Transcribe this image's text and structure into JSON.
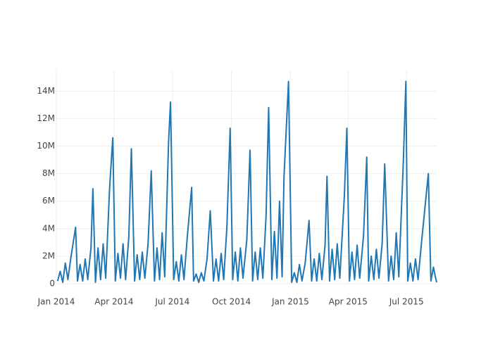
{
  "chart_data": {
    "type": "line",
    "color": "#1f77b4",
    "grid": true,
    "xlim": [
      "2014-01-01",
      "2015-08-17"
    ],
    "xticks": [
      {
        "value": "2014-01-01",
        "label": "Jan 2014"
      },
      {
        "value": "2014-04-01",
        "label": "Apr 2014"
      },
      {
        "value": "2014-07-01",
        "label": "Jul 2014"
      },
      {
        "value": "2014-10-01",
        "label": "Oct 2014"
      },
      {
        "value": "2015-01-01",
        "label": "Jan 2015"
      },
      {
        "value": "2015-04-01",
        "label": "Apr 2015"
      },
      {
        "value": "2015-07-01",
        "label": "Jul 2015"
      }
    ],
    "ylim": [
      0,
      15500000
    ],
    "yticks": [
      0,
      {
        "value": 2000000,
        "label": "2M"
      },
      {
        "value": 4000000,
        "label": "4M"
      },
      {
        "value": 6000000,
        "label": "6M"
      },
      {
        "value": 8000000,
        "label": "8M"
      },
      {
        "value": 10000000,
        "label": "10M"
      },
      {
        "value": 12000000,
        "label": "12M"
      },
      {
        "value": 14000000,
        "label": "14M"
      }
    ],
    "x": [
      "2014-01-03",
      "2014-01-07",
      "2014-01-11",
      "2014-01-15",
      "2014-01-19",
      "2014-01-24",
      "2014-01-31",
      "2014-02-03",
      "2014-02-07",
      "2014-02-11",
      "2014-02-15",
      "2014-02-19",
      "2014-02-24",
      "2014-02-27",
      "2014-03-03",
      "2014-03-07",
      "2014-03-11",
      "2014-03-15",
      "2014-03-19",
      "2014-03-25",
      "2014-03-30",
      "2014-04-03",
      "2014-04-07",
      "2014-04-11",
      "2014-04-15",
      "2014-04-19",
      "2014-04-24",
      "2014-04-28",
      "2014-05-03",
      "2014-05-07",
      "2014-05-11",
      "2014-05-15",
      "2014-05-19",
      "2014-05-24",
      "2014-05-29",
      "2014-06-03",
      "2014-06-07",
      "2014-06-11",
      "2014-06-15",
      "2014-06-19",
      "2014-06-25",
      "2014-06-28",
      "2014-07-03",
      "2014-07-07",
      "2014-07-11",
      "2014-07-15",
      "2014-07-19",
      "2014-07-24",
      "2014-07-31",
      "2014-08-03",
      "2014-08-07",
      "2014-08-11",
      "2014-08-15",
      "2014-08-19",
      "2014-08-24",
      "2014-08-29",
      "2014-09-03",
      "2014-09-07",
      "2014-09-11",
      "2014-09-15",
      "2014-09-19",
      "2014-09-24",
      "2014-09-29",
      "2014-10-03",
      "2014-10-07",
      "2014-10-11",
      "2014-10-15",
      "2014-10-19",
      "2014-10-25",
      "2014-10-30",
      "2014-11-03",
      "2014-11-07",
      "2014-11-11",
      "2014-11-15",
      "2014-11-19",
      "2014-11-24",
      "2014-11-28",
      "2014-12-03",
      "2014-12-07",
      "2014-12-11",
      "2014-12-15",
      "2014-12-19",
      "2014-12-22",
      "2014-12-29",
      "2015-01-03",
      "2015-01-07",
      "2015-01-11",
      "2015-01-15",
      "2015-01-19",
      "2015-01-24",
      "2015-01-30",
      "2015-02-03",
      "2015-02-07",
      "2015-02-11",
      "2015-02-15",
      "2015-02-19",
      "2015-02-24",
      "2015-02-27",
      "2015-03-03",
      "2015-03-07",
      "2015-03-11",
      "2015-03-15",
      "2015-03-19",
      "2015-03-26",
      "2015-03-30",
      "2015-04-03",
      "2015-04-07",
      "2015-04-11",
      "2015-04-15",
      "2015-04-19",
      "2015-04-25",
      "2015-04-30",
      "2015-05-03",
      "2015-05-07",
      "2015-05-11",
      "2015-05-15",
      "2015-05-19",
      "2015-05-24",
      "2015-05-28",
      "2015-06-03",
      "2015-06-07",
      "2015-06-11",
      "2015-06-15",
      "2015-06-19",
      "2015-06-26",
      "2015-06-30",
      "2015-07-03",
      "2015-07-07",
      "2015-07-11",
      "2015-07-15",
      "2015-07-19",
      "2015-07-24",
      "2015-08-04",
      "2015-08-08",
      "2015-08-12",
      "2015-08-15",
      "2015-08-17"
    ],
    "values": [
      200000,
      900000,
      100000,
      1500000,
      300000,
      2000000,
      4100000,
      200000,
      1400000,
      200000,
      1800000,
      300000,
      2600000,
      6900000,
      100000,
      2600000,
      300000,
      2900000,
      400000,
      6900000,
      10600000,
      200000,
      2200000,
      400000,
      2900000,
      300000,
      3400000,
      9800000,
      200000,
      2100000,
      300000,
      2300000,
      400000,
      2900000,
      8200000,
      200000,
      2600000,
      300000,
      3700000,
      500000,
      10300000,
      13200000,
      300000,
      1600000,
      200000,
      2100000,
      300000,
      3300000,
      7000000,
      200000,
      700000,
      100000,
      800000,
      200000,
      1800000,
      5300000,
      200000,
      1800000,
      200000,
      2200000,
      300000,
      4200000,
      11300000,
      300000,
      2300000,
      200000,
      2600000,
      400000,
      3200000,
      9700000,
      200000,
      2300000,
      300000,
      2600000,
      400000,
      4900000,
      12800000,
      300000,
      3800000,
      400000,
      6000000,
      500000,
      7800000,
      14700000,
      100000,
      800000,
      100000,
      1400000,
      200000,
      1500000,
      4600000,
      200000,
      1800000,
      200000,
      2200000,
      300000,
      2800000,
      7800000,
      200000,
      2500000,
      300000,
      2900000,
      400000,
      6300000,
      11300000,
      200000,
      2300000,
      300000,
      2800000,
      400000,
      3500000,
      9200000,
      200000,
      2000000,
      300000,
      2500000,
      400000,
      2900000,
      8700000,
      200000,
      2000000,
      300000,
      3700000,
      500000,
      8800000,
      14700000,
      200000,
      1500000,
      200000,
      1800000,
      300000,
      2800000,
      8000000,
      200000,
      1200000,
      500000,
      100000
    ]
  }
}
